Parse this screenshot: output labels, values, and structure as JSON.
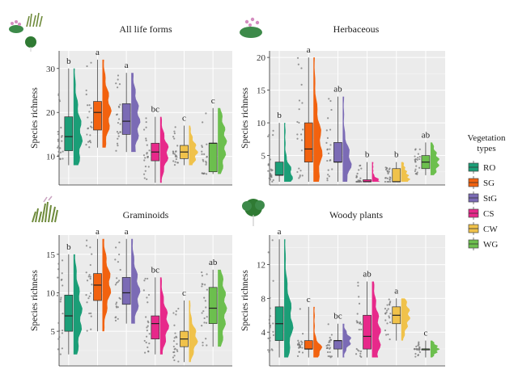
{
  "figure": {
    "legend": {
      "title_line1": "Vegetation",
      "title_line2": "types",
      "items": [
        {
          "label": "RO",
          "color": "#1b9e77"
        },
        {
          "label": "SG",
          "color": "#f2620f"
        },
        {
          "label": "StG",
          "color": "#7b6bb5"
        },
        {
          "label": "CS",
          "color": "#e7298a"
        },
        {
          "label": "CW",
          "color": "#f0c24b"
        },
        {
          "label": "WG",
          "color": "#6cbf4e"
        }
      ]
    }
  },
  "chart_data": [
    {
      "type": "raincloud",
      "title": "All life forms",
      "ylabel": "Species richness",
      "xlabel": "",
      "grid": true,
      "ylim": [
        3.5,
        34
      ],
      "yticks": [
        10,
        20,
        30
      ],
      "categories": [
        "RO",
        "SG",
        "StG",
        "CS",
        "CW",
        "WG"
      ],
      "boxes": [
        {
          "min": 8,
          "q1": 11.3,
          "median": 14.5,
          "q3": 19,
          "max": 30,
          "letter": "b"
        },
        {
          "min": 12,
          "q1": 16,
          "median": 20,
          "q3": 22.5,
          "max": 32,
          "letter": "a"
        },
        {
          "min": 11,
          "q1": 15,
          "median": 18,
          "q3": 22,
          "max": 29,
          "letter": "a"
        },
        {
          "min": 4,
          "q1": 9,
          "median": 11,
          "q3": 13,
          "max": 19,
          "letter": "bc"
        },
        {
          "min": 8,
          "q1": 9.5,
          "median": 11,
          "q3": 12.5,
          "max": 17,
          "letter": "c"
        },
        {
          "min": 6,
          "q1": 6.5,
          "median": 13,
          "q3": 13,
          "max": 21,
          "letter": "c"
        }
      ]
    },
    {
      "type": "raincloud",
      "title": "Herbaceous",
      "ylabel": "Species richness",
      "xlabel": "",
      "grid": true,
      "ylim": [
        0.5,
        21
      ],
      "yticks": [
        5,
        10,
        15,
        20
      ],
      "categories": [
        "RO",
        "SG",
        "StG",
        "CS",
        "CW",
        "WG"
      ],
      "boxes": [
        {
          "min": 1,
          "q1": 2,
          "median": 2,
          "q3": 4,
          "max": 10,
          "letter": "b"
        },
        {
          "min": 1,
          "q1": 4,
          "median": 6,
          "q3": 10,
          "max": 20,
          "letter": "a"
        },
        {
          "min": 1,
          "q1": 4,
          "median": 4,
          "q3": 7,
          "max": 14,
          "letter": "ab"
        },
        {
          "min": 1,
          "q1": 1,
          "median": 1,
          "q3": 1.3,
          "max": 4,
          "letter": "b"
        },
        {
          "min": 1,
          "q1": 1,
          "median": 1,
          "q3": 3,
          "max": 4,
          "letter": "b"
        },
        {
          "min": 2,
          "q1": 3,
          "median": 4,
          "q3": 5,
          "max": 7,
          "letter": "ab"
        }
      ]
    },
    {
      "type": "raincloud",
      "title": "Graminoids",
      "ylabel": "Species richness",
      "xlabel": "",
      "grid": true,
      "ylim": [
        0.5,
        17.5
      ],
      "yticks": [
        5,
        10,
        15
      ],
      "categories": [
        "RO",
        "SG",
        "StG",
        "CS",
        "CW",
        "WG"
      ],
      "boxes": [
        {
          "min": 2,
          "q1": 5,
          "median": 7,
          "q3": 9.7,
          "max": 15,
          "letter": "b"
        },
        {
          "min": 5,
          "q1": 9,
          "median": 11,
          "q3": 12.5,
          "max": 17,
          "letter": "a"
        },
        {
          "min": 6,
          "q1": 8.5,
          "median": 10,
          "q3": 12,
          "max": 17,
          "letter": "a"
        },
        {
          "min": 2,
          "q1": 4,
          "median": 6,
          "q3": 7,
          "max": 12,
          "letter": "bc"
        },
        {
          "min": 1,
          "q1": 3,
          "median": 4,
          "q3": 5,
          "max": 9,
          "letter": "c"
        },
        {
          "min": 3,
          "q1": 6,
          "median": 8,
          "q3": 10.7,
          "max": 13,
          "letter": "ab"
        }
      ]
    },
    {
      "type": "raincloud",
      "title": "Woody plants",
      "ylabel": "Species richness",
      "xlabel": "",
      "grid": true,
      "ylim": [
        0,
        15.5
      ],
      "yticks": [
        4,
        8,
        12
      ],
      "categories": [
        "RO",
        "SG",
        "StG",
        "CS",
        "CW",
        "WG"
      ],
      "boxes": [
        {
          "min": 1,
          "q1": 3,
          "median": 5,
          "q3": 7,
          "max": 15,
          "letter": "a"
        },
        {
          "min": 1,
          "q1": 2,
          "median": 2,
          "q3": 3,
          "max": 7,
          "letter": "c"
        },
        {
          "min": 1,
          "q1": 2,
          "median": 3,
          "q3": 3,
          "max": 5,
          "letter": "bc"
        },
        {
          "min": 1,
          "q1": 2,
          "median": 3.5,
          "q3": 6,
          "max": 10,
          "letter": "ab"
        },
        {
          "min": 3,
          "q1": 5,
          "median": 6,
          "q3": 7,
          "max": 8,
          "letter": "a"
        },
        {
          "min": 1,
          "q1": 2,
          "median": 2,
          "q3": 2,
          "max": 3,
          "letter": "c"
        }
      ]
    }
  ]
}
